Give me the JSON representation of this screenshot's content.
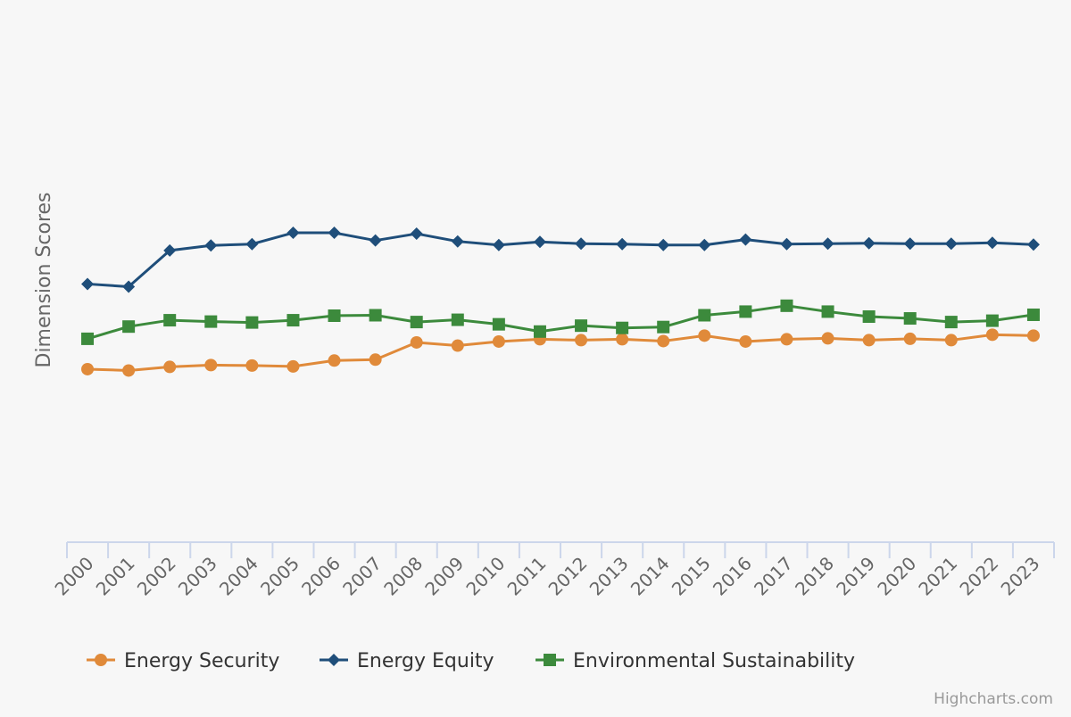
{
  "chart_data": {
    "type": "line",
    "title": "",
    "xlabel": "",
    "ylabel": "Dimension Scores",
    "categories": [
      "2000",
      "2001",
      "2002",
      "2003",
      "2004",
      "2005",
      "2006",
      "2007",
      "2008",
      "2009",
      "2010",
      "2011",
      "2012",
      "2013",
      "2014",
      "2015",
      "2016",
      "2017",
      "2018",
      "2019",
      "2020",
      "2021",
      "2022",
      "2023"
    ],
    "ylim": [
      0,
      100
    ],
    "grid": false,
    "legend": "bottom-left",
    "series": [
      {
        "name": "Energy Security",
        "color": "#e08a3a",
        "marker": "circle",
        "values": [
          38.2,
          37.9,
          38.7,
          39.1,
          39.0,
          38.8,
          40.1,
          40.3,
          44.1,
          43.4,
          44.3,
          44.8,
          44.6,
          44.8,
          44.4,
          45.6,
          44.3,
          44.8,
          45.0,
          44.6,
          44.9,
          44.6,
          45.8,
          45.6
        ]
      },
      {
        "name": "Energy Equity",
        "color": "#1f4e7a",
        "marker": "diamond",
        "values": [
          57.0,
          56.4,
          64.4,
          65.5,
          65.8,
          68.3,
          68.3,
          66.6,
          68.1,
          66.4,
          65.6,
          66.3,
          65.9,
          65.8,
          65.6,
          65.6,
          66.8,
          65.8,
          65.9,
          66.0,
          65.9,
          65.9,
          66.1,
          65.7
        ]
      },
      {
        "name": "Environmental Sustainability",
        "color": "#3c8a3c",
        "marker": "square",
        "values": [
          44.9,
          47.6,
          49.0,
          48.7,
          48.5,
          49.0,
          50.0,
          50.1,
          48.6,
          49.1,
          48.1,
          46.5,
          47.8,
          47.3,
          47.5,
          50.1,
          50.9,
          52.2,
          50.9,
          49.8,
          49.4,
          48.6,
          48.9,
          50.2
        ]
      }
    ]
  },
  "credits": "Highcharts.com"
}
